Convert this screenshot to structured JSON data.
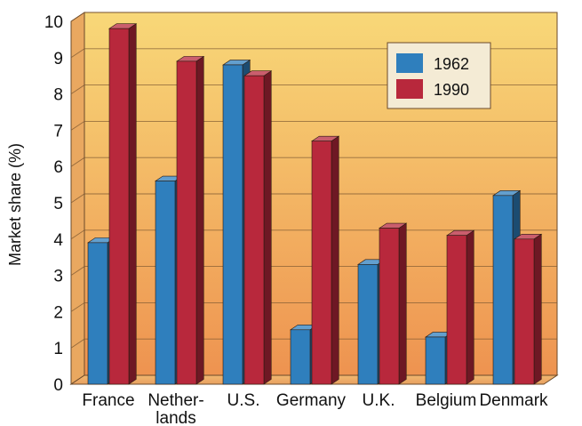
{
  "chart_data": {
    "type": "bar",
    "title": "",
    "xlabel": "",
    "ylabel": "Market share (%)",
    "ylim": [
      0,
      10
    ],
    "yticks": [
      "0",
      "1",
      "2",
      "3",
      "4",
      "5",
      "6",
      "7",
      "8",
      "9",
      "10"
    ],
    "categories": [
      [
        "France"
      ],
      [
        "Nether-",
        "lands"
      ],
      [
        "U.S."
      ],
      [
        "Germany"
      ],
      [
        "U.K."
      ],
      [
        "Belgium"
      ],
      [
        "Denmark"
      ]
    ],
    "series": [
      {
        "name": "1962",
        "color": "#2f7fbd",
        "values": [
          3.9,
          5.6,
          8.8,
          1.5,
          3.3,
          1.3,
          5.2
        ]
      },
      {
        "name": "1990",
        "color": "#b8283c",
        "values": [
          9.8,
          8.9,
          8.5,
          6.7,
          4.3,
          4.1,
          4.0
        ]
      }
    ],
    "grid": true,
    "legend": "top-right",
    "style": "3d",
    "background_gradient": [
      "#f8d878",
      "#ee9350"
    ]
  }
}
